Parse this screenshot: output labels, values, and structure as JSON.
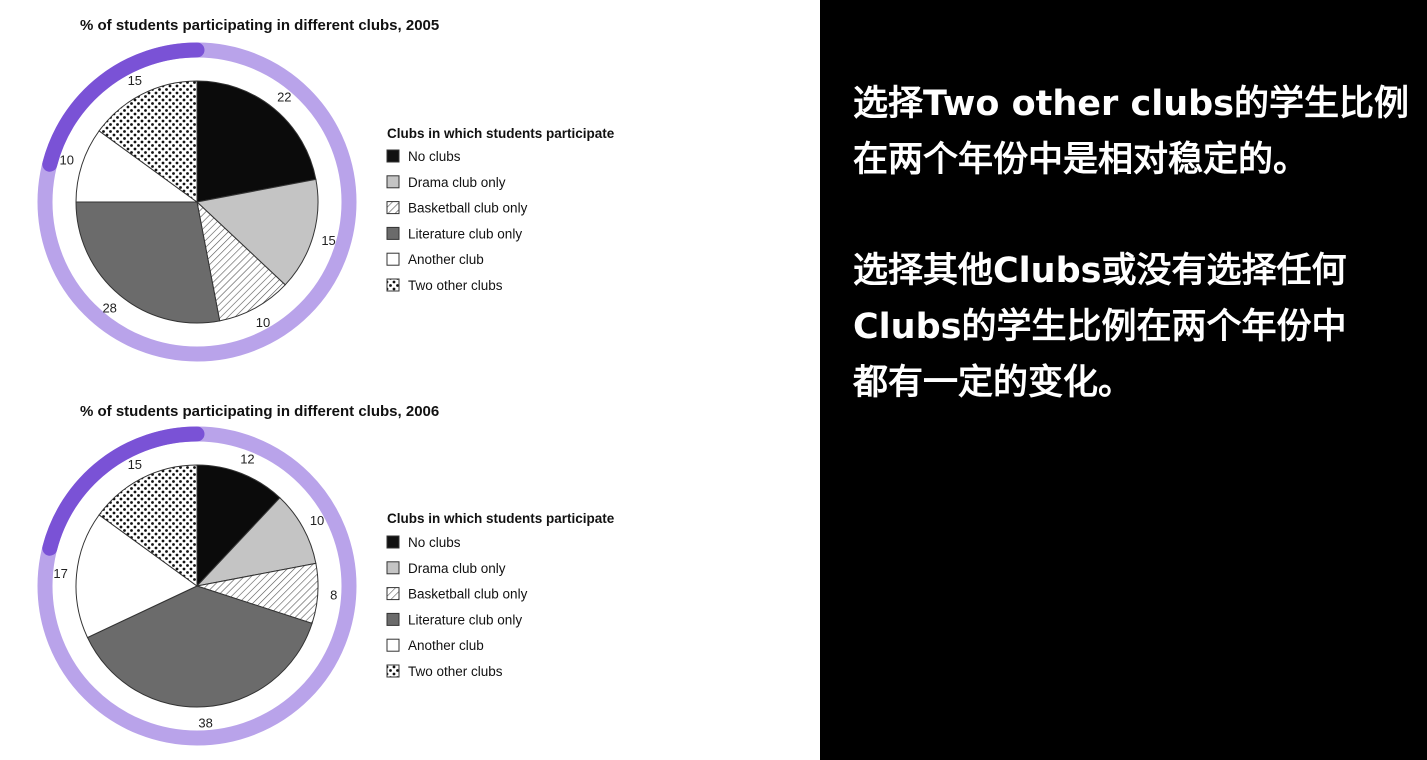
{
  "accent": {
    "ring": "#b9a3ea",
    "highlight": "#7a52d6"
  },
  "chart_data": [
    {
      "type": "pie",
      "title": "% of students participating in different clubs, 2005",
      "legend_title": "Clubs in which students participate",
      "legend_position": "right",
      "categories": [
        "No clubs",
        "Drama club only",
        "Basketball club only",
        "Literature club only",
        "Another club",
        "Two other clubs"
      ],
      "values": [
        22,
        15,
        10,
        28,
        10,
        15
      ],
      "unit": "%"
    },
    {
      "type": "pie",
      "title": "% of students participating in different clubs, 2006",
      "legend_title": "Clubs in which students participate",
      "legend_position": "right",
      "categories": [
        "No clubs",
        "Drama club only",
        "Basketball club only",
        "Literature club only",
        "Another club",
        "Two other clubs"
      ],
      "values": [
        12,
        10,
        8,
        38,
        17,
        15
      ],
      "unit": "%"
    }
  ],
  "notes": [
    {
      "lines": [
        "选择Two other clubs的学生比例",
        "在两个年份中是相对稳定的。"
      ]
    },
    {
      "lines": [
        "选择其他Clubs或没有选择任何",
        "Clubs的学生比例在两个年份中",
        "都有一定的变化。"
      ]
    }
  ]
}
